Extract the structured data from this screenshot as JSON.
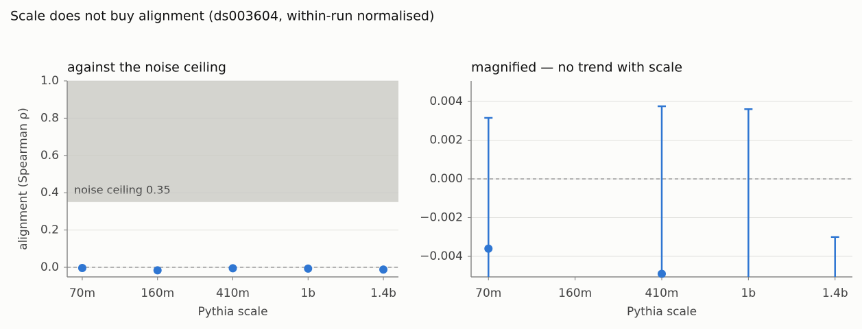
{
  "chart_data": {
    "type": "errorbar",
    "title": "Scale does not buy alignment (ds003604, within-run normalised)",
    "categories": [
      "70m",
      "160m",
      "410m",
      "1b",
      "1.4b"
    ],
    "values": [
      -0.0036,
      -0.016,
      -0.0049,
      -0.007,
      -0.012
    ],
    "errors": [
      0.00675,
      0.004,
      0.00865,
      0.0106,
      0.009
    ],
    "color": "#2f76d2",
    "xlabel": "Pythia scale",
    "panels": [
      {
        "title": "against the noise ceiling",
        "ylabel": "alignment (Spearman ρ)",
        "ylim": [
          -0.0515,
          1.0
        ],
        "yticks": [
          {
            "value": 0,
            "label": "0.0"
          },
          0.2,
          0.4,
          0.6,
          0.8,
          {
            "value": 1,
            "label": "1.0"
          }
        ],
        "ceiling": 0.35,
        "ceiling_label": "noise ceiling 0.35",
        "ceiling_color": "#d4d4cf",
        "grid": true
      },
      {
        "title": "magnified — no trend with scale",
        "ylim": [
          -0.00506,
          0.00506
        ],
        "yticks": [
          {
            "value": -0.004,
            "label": "−0.004"
          },
          {
            "value": -0.002,
            "label": "−0.002"
          },
          {
            "value": 0,
            "label": "0.000"
          },
          0.002,
          0.004
        ],
        "grid": true,
        "error_bars": true
      }
    ]
  }
}
